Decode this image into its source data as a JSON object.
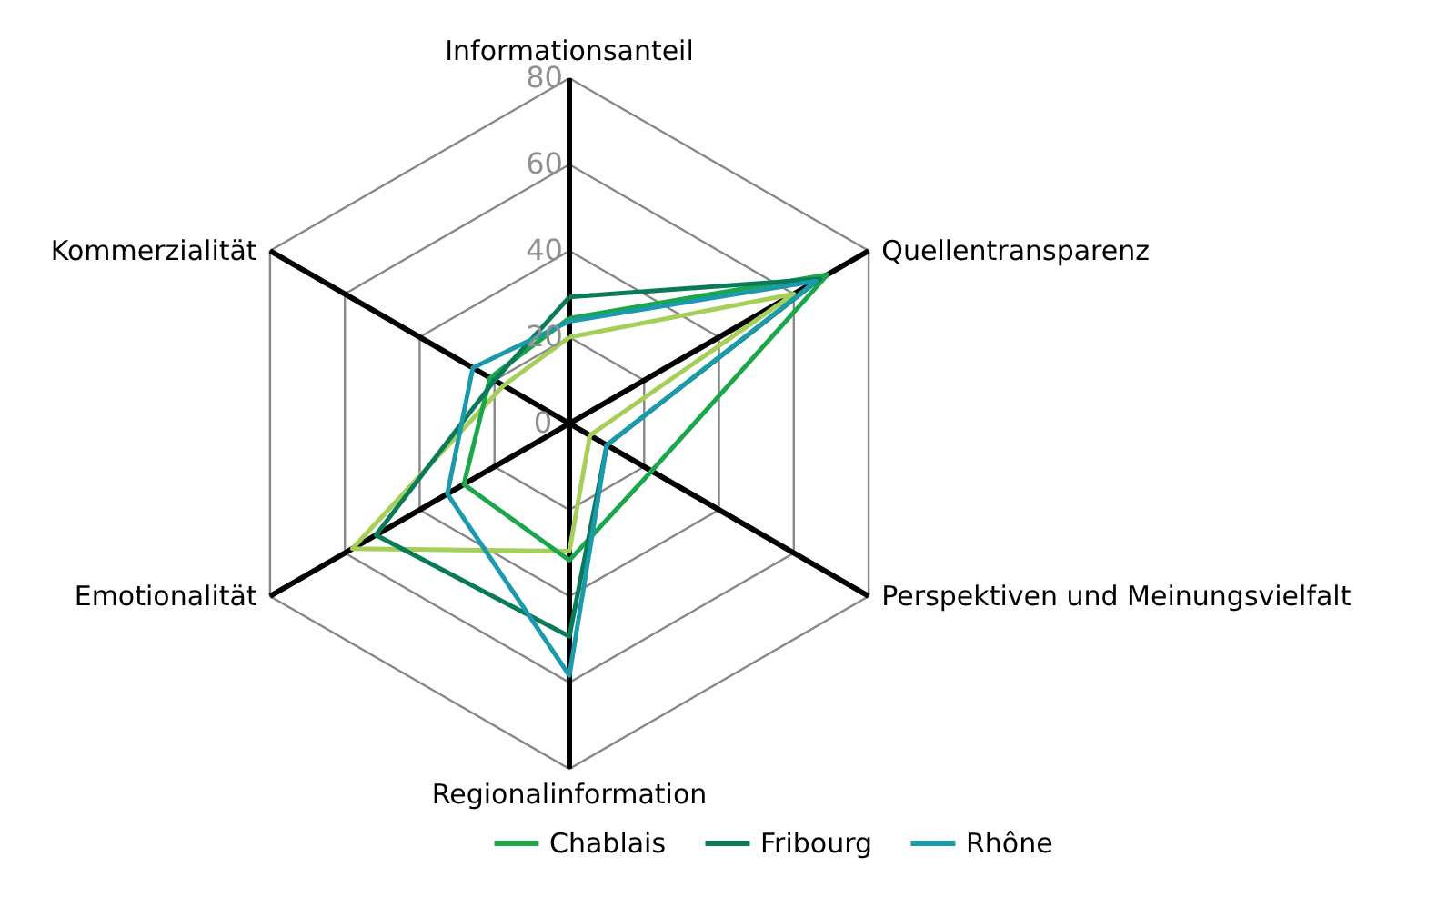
{
  "chart_data": {
    "type": "radar",
    "categories": [
      "Informationsanteil",
      "Quellentransparenz",
      "Perspektiven und Meinungsvielfalt",
      "Regionalinformation",
      "Emotionalität",
      "Kommerzialität"
    ],
    "ylim": [
      0,
      80
    ],
    "yticks": [
      0,
      20,
      40,
      60,
      80
    ],
    "grid": true,
    "legend": "bottom",
    "series": [
      {
        "color": "#a6cf5a",
        "values": [
          20,
          60,
          5.5,
          29.6,
          58,
          17.6
        ]
      },
      {
        "name": "Chablais",
        "color": "#1aa64a",
        "values": [
          24.4,
          69,
          22,
          31.7,
          28.2,
          21.2
        ]
      },
      {
        "name": "Fribourg",
        "color": "#0a7a5a",
        "values": [
          29.3,
          67,
          10,
          49.3,
          51.7,
          20
        ]
      },
      {
        "name": "Rhône",
        "color": "#1a9aaa",
        "values": [
          23.7,
          66,
          10,
          58.4,
          32.6,
          25.8
        ]
      }
    ]
  }
}
